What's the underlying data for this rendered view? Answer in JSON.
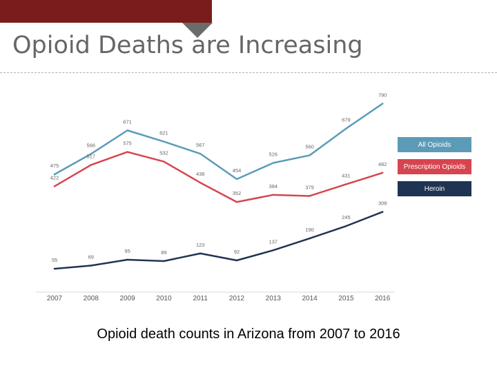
{
  "slide": {
    "title": "Opioid Deaths are Increasing",
    "caption": "Opioid death counts in Arizona from 2007 to 2016",
    "accent_color": "#7a1c1c"
  },
  "chart_data": {
    "type": "line",
    "title": "",
    "xlabel": "",
    "ylabel": "",
    "x": [
      "2007",
      "2008",
      "2009",
      "2010",
      "2011",
      "2012",
      "2013",
      "2014",
      "2015",
      "2016"
    ],
    "ylim": [
      0,
      790
    ],
    "grid": false,
    "legend_position": "right",
    "series": [
      {
        "name": "All Opioids",
        "color": "#5b9bb8",
        "values": [
          475,
          566,
          671,
          621,
          567,
          454,
          526,
          560,
          679,
          790
        ],
        "labels": [
          "475",
          "566",
          "671",
          "621",
          "567",
          "454",
          "526",
          "560",
          "679",
          "790"
        ]
      },
      {
        "name": "Prescription Opioids",
        "color": "#d6454f",
        "values": [
          422,
          517,
          575,
          532,
          438,
          352,
          384,
          379,
          431,
          482
        ],
        "labels": [
          "422",
          "517",
          "575",
          "532",
          "438",
          "352",
          "384",
          "379",
          "431",
          "482"
        ]
      },
      {
        "name": "Heroin",
        "color": "#1f3453",
        "values": [
          55,
          69,
          95,
          89,
          123,
          92,
          137,
          190,
          245,
          308
        ],
        "labels": [
          "55",
          "69",
          "95",
          "89",
          "123",
          "92",
          "137",
          "190",
          "245",
          "308"
        ]
      }
    ]
  }
}
